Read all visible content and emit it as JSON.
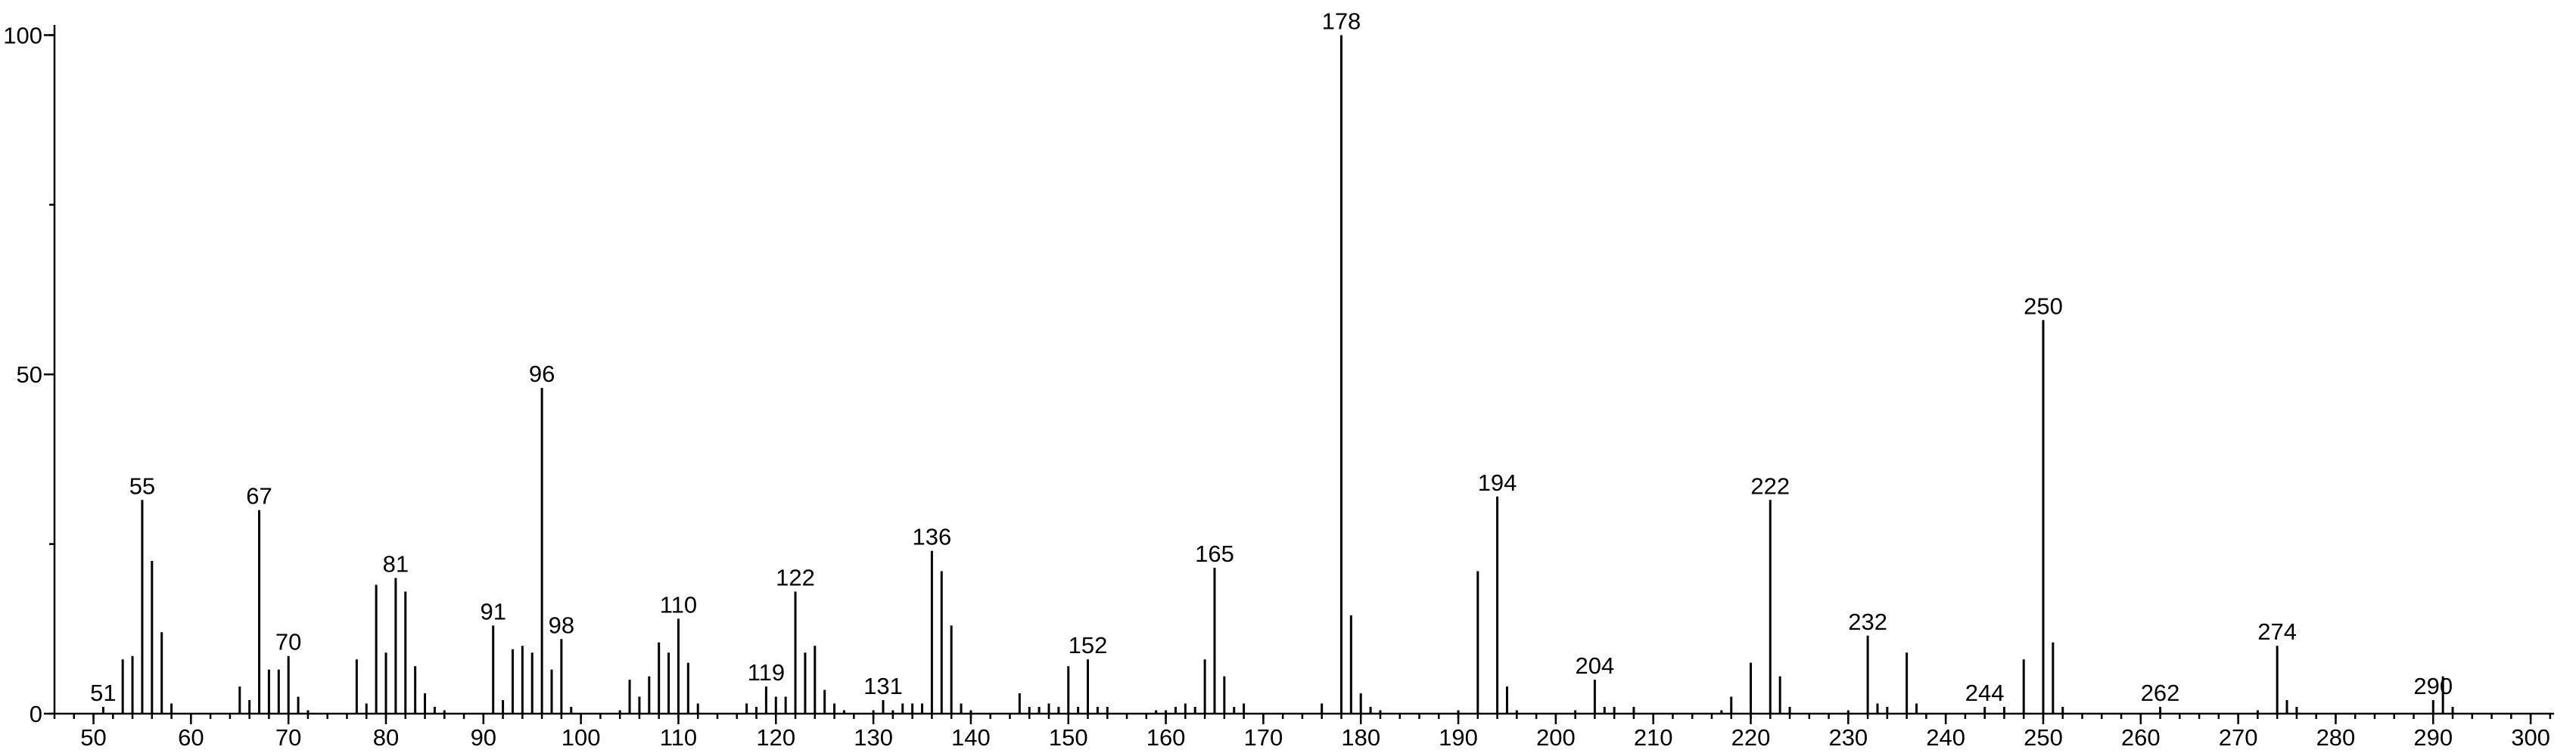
{
  "chart_data": {
    "type": "stem",
    "color": "#000000",
    "x": [
      51,
      53,
      54,
      55,
      56,
      57,
      58,
      65,
      66,
      67,
      68,
      69,
      70,
      71,
      72,
      77,
      78,
      79,
      80,
      81,
      82,
      83,
      84,
      85,
      86,
      91,
      92,
      93,
      94,
      95,
      96,
      97,
      98,
      99,
      104,
      105,
      106,
      107,
      108,
      109,
      110,
      111,
      112,
      117,
      118,
      119,
      120,
      121,
      122,
      123,
      124,
      125,
      126,
      127,
      130,
      131,
      132,
      133,
      134,
      135,
      136,
      137,
      138,
      139,
      140,
      145,
      146,
      147,
      148,
      149,
      150,
      151,
      152,
      153,
      154,
      159,
      160,
      161,
      162,
      163,
      164,
      165,
      166,
      167,
      168,
      176,
      178,
      179,
      180,
      181,
      182,
      190,
      192,
      194,
      195,
      196,
      202,
      204,
      205,
      206,
      208,
      217,
      218,
      220,
      222,
      223,
      224,
      230,
      232,
      233,
      234,
      236,
      237,
      244,
      246,
      248,
      250,
      251,
      252,
      262,
      272,
      274,
      275,
      276,
      290,
      291,
      292
    ],
    "values": [
      1,
      8,
      8.5,
      31.5,
      22.5,
      12,
      1.5,
      4,
      2,
      30,
      6.5,
      6.5,
      8.5,
      2.5,
      0.5,
      8,
      1.5,
      19,
      9,
      20,
      18,
      7,
      3,
      1,
      0.5,
      13,
      2,
      9.5,
      10,
      9,
      48,
      6.5,
      11,
      1,
      0.5,
      5,
      2.5,
      5.5,
      10.5,
      9,
      14,
      7.5,
      1.5,
      1.5,
      1,
      4,
      2.5,
      2.5,
      18,
      9,
      10,
      3.5,
      1.5,
      0.5,
      0.5,
      2,
      0.5,
      1.5,
      1.5,
      1.5,
      24,
      21,
      13,
      1.5,
      0.5,
      3,
      1,
      1,
      1.5,
      1,
      7,
      1,
      8,
      1,
      1,
      0.5,
      0.5,
      1,
      1.5,
      1,
      8,
      21.5,
      5.5,
      1,
      1.5,
      1.5,
      100,
      14.5,
      3,
      1,
      0.5,
      0.5,
      21,
      32,
      4,
      0.5,
      0.5,
      5,
      1,
      1,
      1,
      0.5,
      2.5,
      7.5,
      31.5,
      5.5,
      1,
      0.5,
      11.5,
      1.5,
      1,
      9,
      1.5,
      1,
      1,
      8,
      58,
      10.5,
      1,
      1,
      0.5,
      10,
      2,
      1,
      2,
      5.5,
      1
    ],
    "labeled": [
      0,
      3,
      9,
      12,
      19,
      25,
      30,
      32,
      40,
      45,
      48,
      55,
      60,
      72,
      81,
      86,
      93,
      97,
      104,
      108,
      113,
      116,
      119,
      121,
      124
    ],
    "xlim": [
      46,
      302.4
    ],
    "ylim": [
      0,
      101.5
    ],
    "xticks": [
      50,
      60,
      70,
      80,
      90,
      100,
      110,
      120,
      130,
      140,
      150,
      160,
      170,
      180,
      190,
      200,
      210,
      220,
      230,
      240,
      250,
      260,
      270,
      280,
      290,
      300
    ],
    "yticks": [
      0,
      50,
      100
    ],
    "xminor_step": 2,
    "yminor_step": 25
  }
}
